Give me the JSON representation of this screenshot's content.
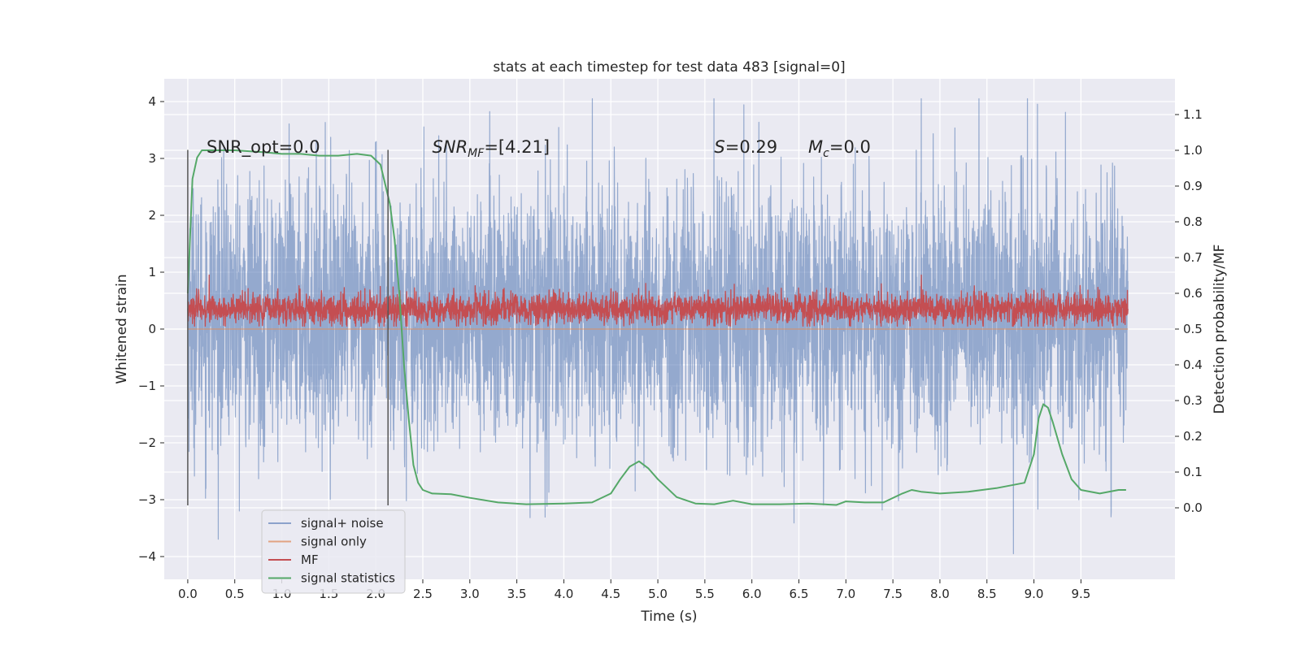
{
  "chart_data": {
    "type": "line",
    "title": "stats at each timestep for test data 483 [signal=0]",
    "xlabel": "Time (s)",
    "ylabel": "Whitened strain",
    "ylabel_right": "Detection probability/MF",
    "xlim": [
      -0.25,
      10.5
    ],
    "ylim": [
      -4.4,
      4.4
    ],
    "ylim_right": [
      -0.2,
      1.2
    ],
    "x_ticks": [
      0.0,
      0.5,
      1.0,
      1.5,
      2.0,
      2.5,
      3.0,
      3.5,
      4.0,
      4.5,
      5.0,
      5.5,
      6.0,
      6.5,
      7.0,
      7.5,
      8.0,
      8.5,
      9.0,
      9.5
    ],
    "x_tick_labels": [
      "0.0",
      "0.5",
      "1.0",
      "1.5",
      "2.0",
      "2.5",
      "3.0",
      "3.5",
      "4.0",
      "4.5",
      "5.0",
      "5.5",
      "6.0",
      "6.5",
      "7.0",
      "7.5",
      "8.0",
      "8.5",
      "9.0",
      "9.5"
    ],
    "y_ticks": [
      -4,
      -3,
      -2,
      -1,
      0,
      1,
      2,
      3,
      4
    ],
    "y_tick_labels": [
      "−4",
      "−3",
      "−2",
      "−1",
      "0",
      "1",
      "2",
      "3",
      "4"
    ],
    "y_ticks_right": [
      0.0,
      0.1,
      0.2,
      0.3,
      0.4,
      0.5,
      0.6,
      0.7,
      0.8,
      0.9,
      1.0,
      1.1
    ],
    "y_tick_labels_right": [
      "0.0",
      "0.1",
      "0.2",
      "0.3",
      "0.4",
      "0.5",
      "0.6",
      "0.7",
      "0.8",
      "0.9",
      "1.0",
      "1.1"
    ],
    "grid": true,
    "legend_position": "lower-left",
    "annotations": [
      {
        "text": "SNR_opt=0.0",
        "x": 0.2,
        "y": 3.2
      },
      {
        "base": "SNR",
        "sub": "MF",
        "rest": "=[4.21]",
        "x": 2.6,
        "y": 3.2
      },
      {
        "base": "S",
        "sub": "",
        "rest": "=0.29",
        "x": 5.6,
        "y": 3.2
      },
      {
        "base": "M",
        "sub": "c",
        "rest": "=0.0",
        "x": 6.6,
        "y": 3.2
      }
    ],
    "window_markers": [
      {
        "x": 0.0,
        "y_range": [
          -3.1,
          3.15
        ]
      },
      {
        "x": 2.13,
        "y_range": [
          -3.1,
          3.15
        ]
      }
    ],
    "series": [
      {
        "name": "signal+ noise",
        "color": "#4c72b0",
        "axis": "left",
        "render": "noise",
        "x_range": [
          0.0,
          10.0
        ],
        "typical_range": [
          -1.8,
          2.3
        ],
        "peak_max": 4.05,
        "peak_min": -3.95
      },
      {
        "name": "signal only",
        "color": "#dd8452",
        "axis": "left",
        "x": [
          0.0,
          10.0
        ],
        "y": [
          0.0,
          0.0
        ]
      },
      {
        "name": "MF",
        "color": "#c44e52",
        "axis": "left",
        "render": "noise",
        "x_range": [
          0.0,
          10.0
        ],
        "typical_range": [
          0.1,
          0.6
        ],
        "peak_max": 0.95,
        "peak_min": 0.05
      },
      {
        "name": "signal statistics",
        "color": "#55a868",
        "axis": "right",
        "x": [
          0.0,
          0.05,
          0.1,
          0.15,
          0.3,
          0.5,
          0.8,
          1.0,
          1.2,
          1.4,
          1.6,
          1.8,
          1.95,
          2.05,
          2.15,
          2.2,
          2.25,
          2.3,
          2.35,
          2.4,
          2.45,
          2.5,
          2.6,
          2.8,
          3.0,
          3.3,
          3.6,
          4.0,
          4.3,
          4.5,
          4.6,
          4.7,
          4.8,
          4.9,
          5.0,
          5.2,
          5.4,
          5.6,
          5.8,
          6.0,
          6.3,
          6.6,
          6.9,
          7.0,
          7.2,
          7.4,
          7.6,
          7.7,
          7.8,
          8.0,
          8.3,
          8.6,
          8.9,
          9.0,
          9.05,
          9.1,
          9.15,
          9.2,
          9.3,
          9.4,
          9.5,
          9.7,
          9.9,
          9.98
        ],
        "y": [
          0.6,
          0.92,
          0.98,
          1.0,
          1.0,
          1.0,
          0.995,
          0.99,
          0.99,
          0.985,
          0.985,
          0.99,
          0.985,
          0.96,
          0.85,
          0.75,
          0.6,
          0.4,
          0.25,
          0.12,
          0.07,
          0.05,
          0.04,
          0.038,
          0.028,
          0.015,
          0.01,
          0.012,
          0.015,
          0.04,
          0.08,
          0.115,
          0.13,
          0.11,
          0.08,
          0.03,
          0.012,
          0.01,
          0.02,
          0.01,
          0.01,
          0.012,
          0.008,
          0.018,
          0.015,
          0.015,
          0.04,
          0.05,
          0.045,
          0.04,
          0.045,
          0.055,
          0.07,
          0.15,
          0.25,
          0.29,
          0.28,
          0.24,
          0.15,
          0.08,
          0.05,
          0.04,
          0.05,
          0.05
        ]
      }
    ]
  }
}
